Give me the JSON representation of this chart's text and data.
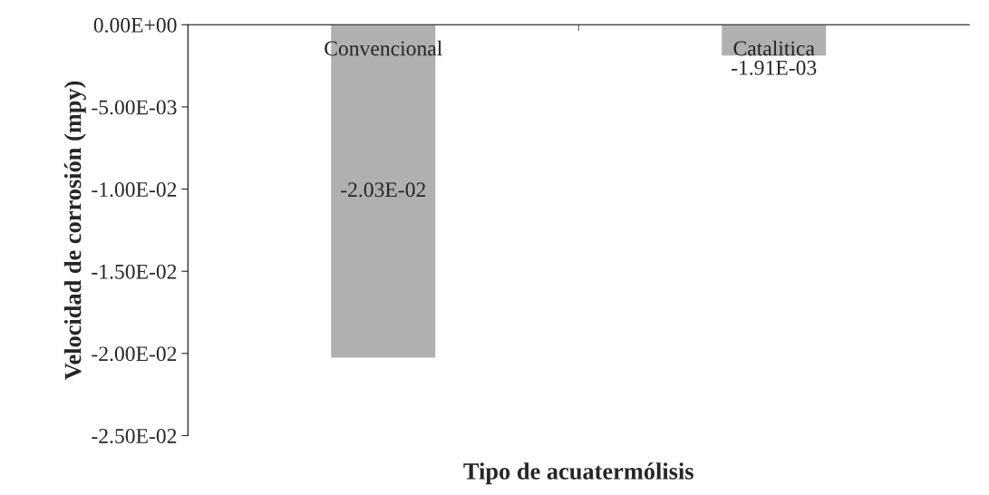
{
  "chart_data": {
    "type": "bar",
    "xlabel": "Tipo de acuatermólisis",
    "ylabel": "Velocidad de corrosión (mpy)",
    "categories": [
      "Convencional",
      "Catalitica"
    ],
    "values": [
      -0.0203,
      -0.00191
    ],
    "value_labels": [
      "-2.03E-02",
      "-1.91E-03"
    ],
    "color": "#b0b0b0",
    "ylim": [
      -0.025,
      0
    ],
    "yticks": [
      {
        "value": 0,
        "label": "0.00E+00"
      },
      {
        "value": -0.005,
        "label": "-5.00E-03"
      },
      {
        "value": -0.01,
        "label": "-1.00E-02"
      },
      {
        "value": -0.015,
        "label": "-1.50E-02"
      },
      {
        "value": -0.02,
        "label": "-2.00E-02"
      },
      {
        "value": -0.025,
        "label": "-2.50E-02"
      }
    ],
    "grid": false,
    "legend": false
  }
}
